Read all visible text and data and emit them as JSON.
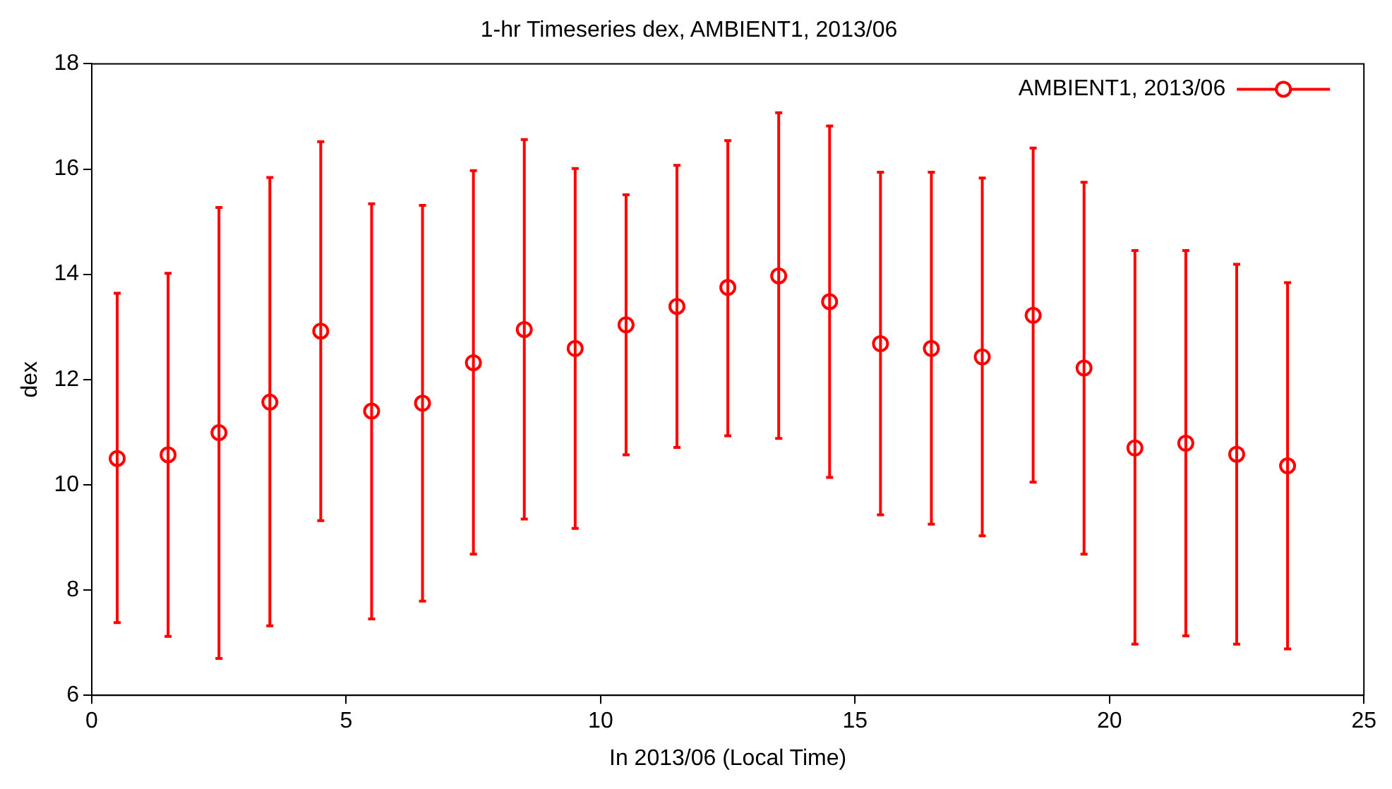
{
  "chart_data": {
    "type": "scatter",
    "title": "1-hr Timeseries dex, AMBIENT1, 2013/06",
    "xlabel": "In 2013/06 (Local Time)",
    "ylabel": "dex",
    "x": [
      0.5,
      1.5,
      2.5,
      3.5,
      4.5,
      5.5,
      6.5,
      7.5,
      8.5,
      9.5,
      10.5,
      11.5,
      12.5,
      13.5,
      14.5,
      15.5,
      16.5,
      17.5,
      18.5,
      19.5,
      20.5,
      21.5,
      22.5,
      23.5
    ],
    "series": [
      {
        "name": "AMBIENT1, 2013/06",
        "color": "#ff0000",
        "values": [
          10.5,
          10.57,
          10.99,
          11.57,
          12.92,
          11.4,
          11.55,
          12.32,
          12.95,
          12.59,
          13.04,
          13.39,
          13.75,
          13.97,
          13.48,
          12.68,
          12.59,
          12.43,
          13.22,
          12.22,
          10.7,
          10.79,
          10.58,
          10.36
        ],
        "errors": [
          [
            7.38,
            13.64
          ],
          [
            7.12,
            14.02
          ],
          [
            6.7,
            15.27
          ],
          [
            7.32,
            15.84
          ],
          [
            9.32,
            16.52
          ],
          [
            7.45,
            15.34
          ],
          [
            7.79,
            15.31
          ],
          [
            8.68,
            15.97
          ],
          [
            9.35,
            16.56
          ],
          [
            9.17,
            16.01
          ],
          [
            10.57,
            15.51
          ],
          [
            10.71,
            16.07
          ],
          [
            10.93,
            16.54
          ],
          [
            10.88,
            17.07
          ],
          [
            10.14,
            16.82
          ],
          [
            9.43,
            15.94
          ],
          [
            9.25,
            15.94
          ],
          [
            9.03,
            15.83
          ],
          [
            10.05,
            16.4
          ],
          [
            8.68,
            15.75
          ],
          [
            6.97,
            14.45
          ],
          [
            7.13,
            14.45
          ],
          [
            6.97,
            14.19
          ],
          [
            6.88,
            13.84
          ]
        ]
      }
    ],
    "xlim": [
      0,
      25
    ],
    "xticks": [
      0,
      5,
      10,
      15,
      20,
      25
    ],
    "ylim": [
      6,
      18
    ],
    "yticks": [
      6,
      8,
      10,
      12,
      14,
      16,
      18
    ],
    "grid": false,
    "legend": "top right",
    "marker": "circle"
  }
}
